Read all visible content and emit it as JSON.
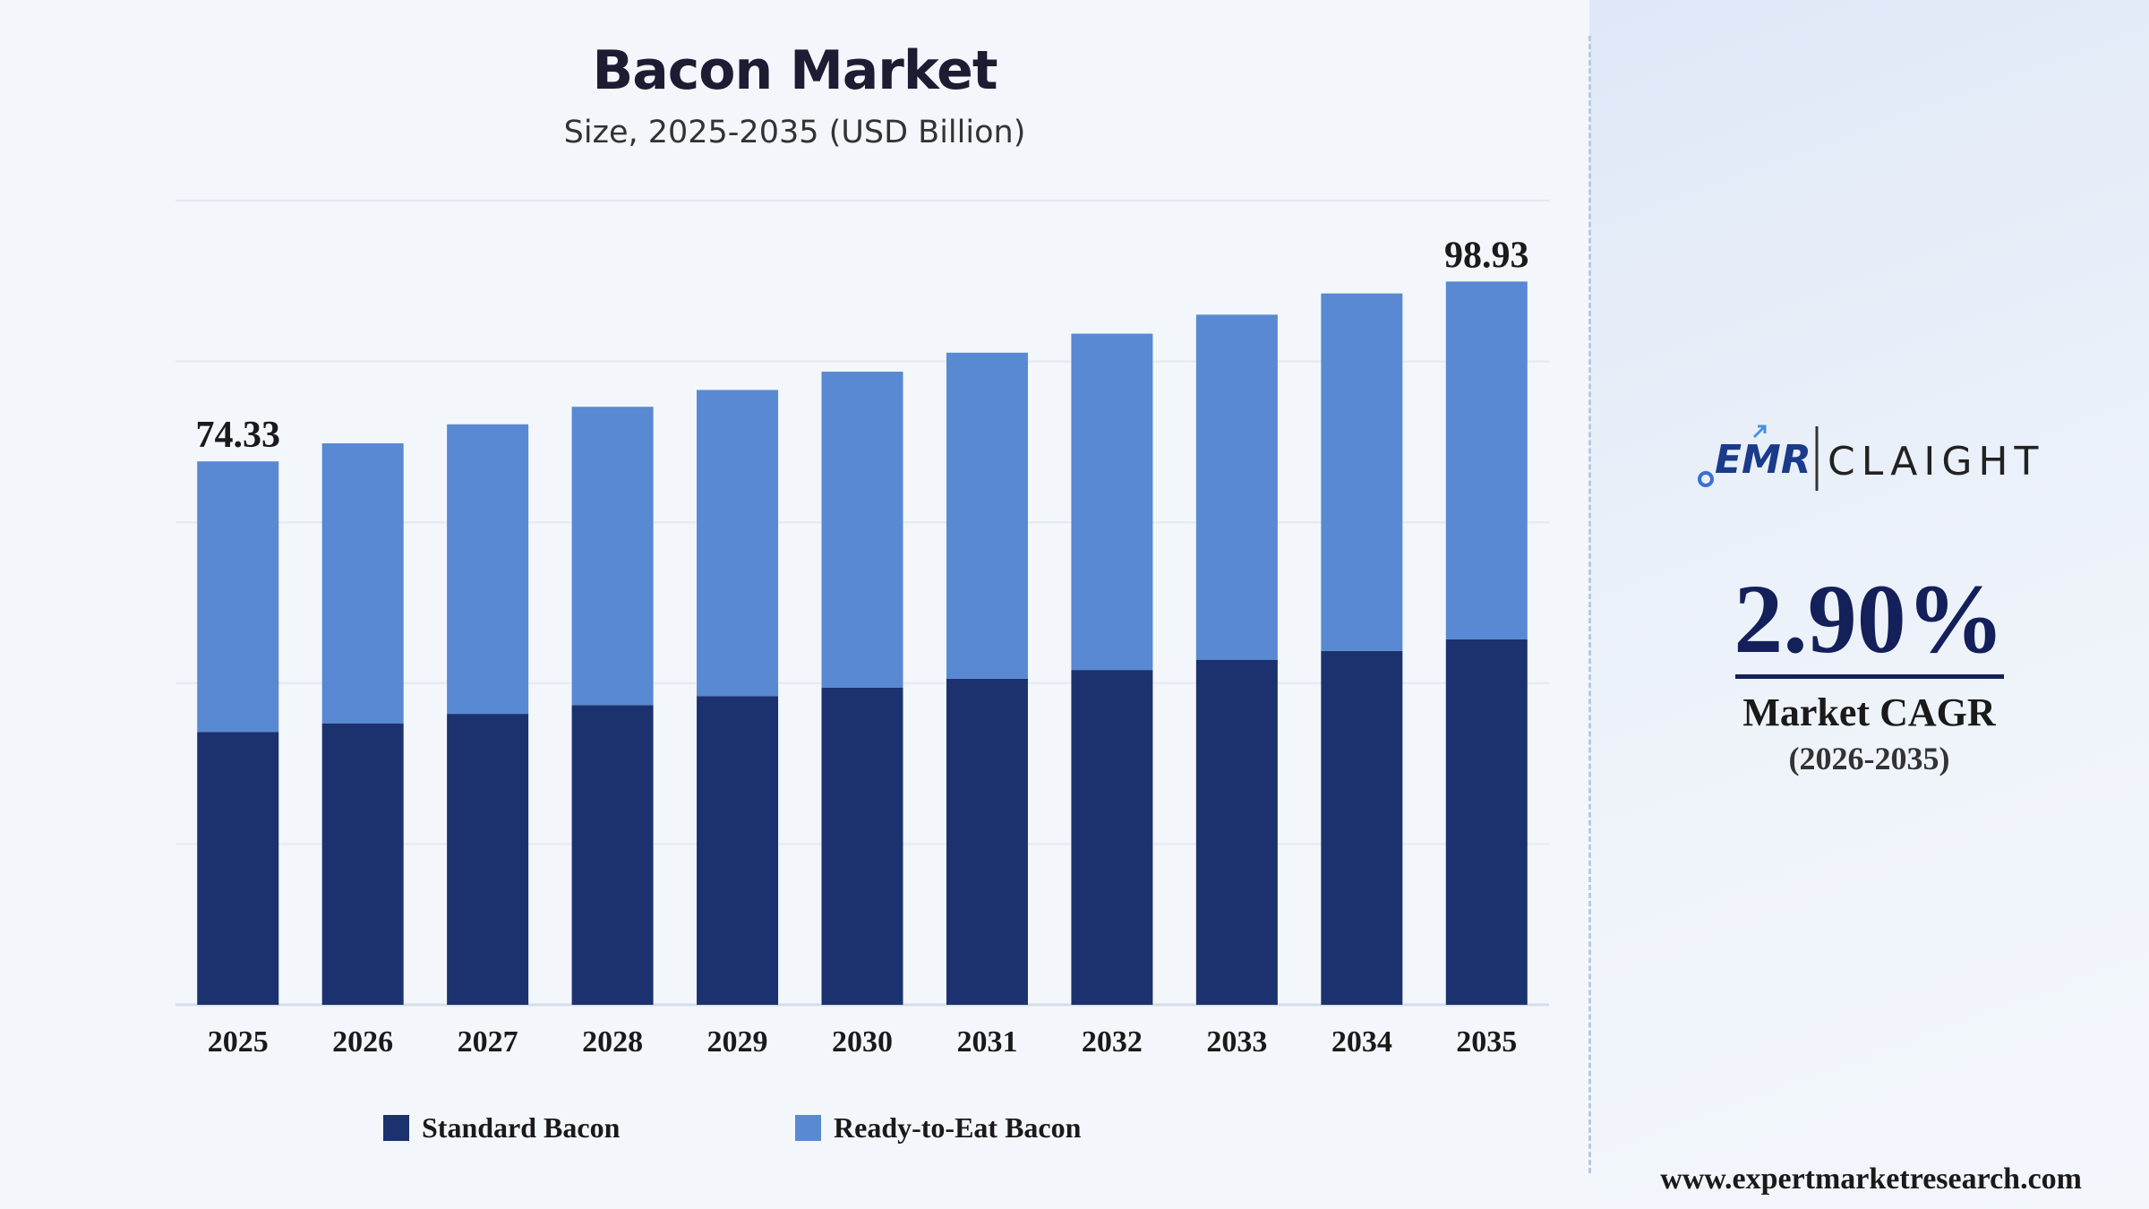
{
  "chart_data": {
    "type": "bar",
    "stacked": true,
    "title": "Bacon Market",
    "subtitle": "Size, 2025-2035 (USD Billion)",
    "categories": [
      "2025",
      "2026",
      "2027",
      "2028",
      "2029",
      "2030",
      "2031",
      "2032",
      "2033",
      "2034",
      "2035"
    ],
    "series": [
      {
        "name": "Standard Bacon",
        "color": "#1c326e",
        "values": [
          37.3,
          38.5,
          39.8,
          41.0,
          42.2,
          43.4,
          44.6,
          45.8,
          47.2,
          48.4,
          50.0
        ]
      },
      {
        "name": "Ready-to-Eat Bacon",
        "color": "#5889d2",
        "values": [
          37.03,
          38.3,
          39.6,
          40.8,
          41.9,
          43.2,
          44.6,
          46.0,
          47.2,
          48.9,
          48.93
        ]
      }
    ],
    "totals_labels": [
      {
        "index": 0,
        "text": "74.33"
      },
      {
        "index": 10,
        "text": "98.93"
      }
    ],
    "ylim": [
      0,
      110
    ],
    "grid": true,
    "legend_position": "bottom"
  },
  "side_panel": {
    "logo": {
      "emr_text": "EMR",
      "claight_text": "CLAIGHT"
    },
    "cagr_value": "2.90%",
    "cagr_label": "Market CAGR",
    "cagr_period": "(2026-2035)",
    "website": "www.expertmarketresearch.com"
  },
  "colors": {
    "standard": "#1c326e",
    "ready_to_eat": "#5889d2",
    "accent_navy": "#13205a",
    "background": "#f3f7fc"
  }
}
